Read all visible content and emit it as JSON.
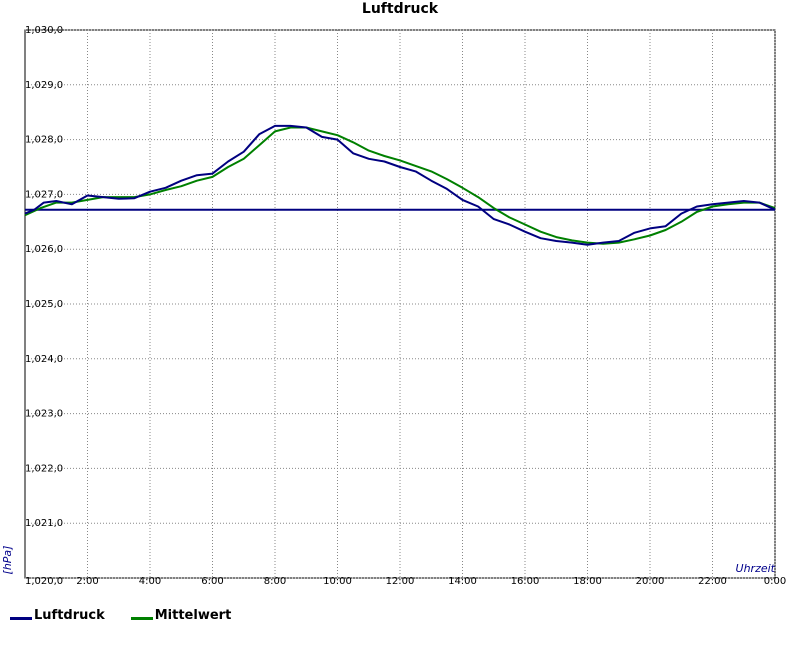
{
  "chart_data": {
    "type": "line",
    "title": "Luftdruck",
    "ylabel": "[hPa]",
    "xlabel": "Uhrzeit",
    "ylim": [
      1020.0,
      1030.0
    ],
    "xlim": [
      0,
      24
    ],
    "grid": true,
    "legend_position": "bottom-left",
    "y_ticks": [
      "1,020,0",
      "1,021,0",
      "1,022,0",
      "1,023,0",
      "1,024,0",
      "1,025,0",
      "1,026,0",
      "1,027,0",
      "1,028,0",
      "1,029,0",
      "1,030,0"
    ],
    "x_ticks": [
      "2:00",
      "4:00",
      "6:00",
      "8:00",
      "10:00",
      "12:00",
      "14:00",
      "16:00",
      "18:00",
      "20:00",
      "22:00",
      "0:00"
    ],
    "reference_line": 1026.72,
    "series": [
      {
        "name": "Luftdruck",
        "color": "#000080",
        "x": [
          0,
          0.3,
          0.6,
          1.0,
          1.5,
          2.0,
          2.5,
          3.0,
          3.5,
          4.0,
          4.5,
          5.0,
          5.5,
          6.0,
          6.5,
          7.0,
          7.5,
          8.0,
          8.5,
          9.0,
          9.5,
          10.0,
          10.5,
          11.0,
          11.5,
          12.0,
          12.5,
          13.0,
          13.5,
          14.0,
          14.5,
          15.0,
          15.5,
          16.0,
          16.5,
          17.0,
          17.5,
          18.0,
          18.5,
          19.0,
          19.5,
          20.0,
          20.5,
          21.0,
          21.5,
          22.0,
          22.5,
          23.0,
          23.5,
          24.0
        ],
        "values": [
          1026.65,
          1026.72,
          1026.85,
          1026.88,
          1026.82,
          1026.98,
          1026.95,
          1026.92,
          1026.93,
          1027.05,
          1027.12,
          1027.25,
          1027.35,
          1027.38,
          1027.6,
          1027.78,
          1028.1,
          1028.25,
          1028.25,
          1028.22,
          1028.05,
          1028.0,
          1027.75,
          1027.65,
          1027.6,
          1027.5,
          1027.42,
          1027.25,
          1027.1,
          1026.9,
          1026.78,
          1026.55,
          1026.45,
          1026.32,
          1026.2,
          1026.15,
          1026.12,
          1026.08,
          1026.12,
          1026.15,
          1026.3,
          1026.38,
          1026.42,
          1026.65,
          1026.78,
          1026.82,
          1026.85,
          1026.88,
          1026.85,
          1026.72
        ]
      },
      {
        "name": "Mittelwert",
        "color": "#008000",
        "x": [
          0,
          0.5,
          1.0,
          1.5,
          2.0,
          2.5,
          3.0,
          3.5,
          4.0,
          4.5,
          5.0,
          5.5,
          6.0,
          6.5,
          7.0,
          7.5,
          8.0,
          8.5,
          9.0,
          9.5,
          10.0,
          10.5,
          11.0,
          11.5,
          12.0,
          12.5,
          13.0,
          13.5,
          14.0,
          14.5,
          15.0,
          15.5,
          16.0,
          16.5,
          17.0,
          17.5,
          18.0,
          18.5,
          19.0,
          19.5,
          20.0,
          20.5,
          21.0,
          21.5,
          22.0,
          22.5,
          23.0,
          23.5,
          24.0
        ],
        "values": [
          1026.62,
          1026.75,
          1026.85,
          1026.85,
          1026.9,
          1026.95,
          1026.95,
          1026.95,
          1027.0,
          1027.08,
          1027.15,
          1027.25,
          1027.32,
          1027.5,
          1027.65,
          1027.9,
          1028.15,
          1028.22,
          1028.22,
          1028.15,
          1028.08,
          1027.95,
          1027.8,
          1027.7,
          1027.62,
          1027.52,
          1027.42,
          1027.28,
          1027.12,
          1026.95,
          1026.75,
          1026.58,
          1026.45,
          1026.32,
          1026.22,
          1026.16,
          1026.12,
          1026.1,
          1026.12,
          1026.18,
          1026.25,
          1026.35,
          1026.5,
          1026.68,
          1026.78,
          1026.82,
          1026.85,
          1026.85,
          1026.75
        ]
      }
    ]
  }
}
